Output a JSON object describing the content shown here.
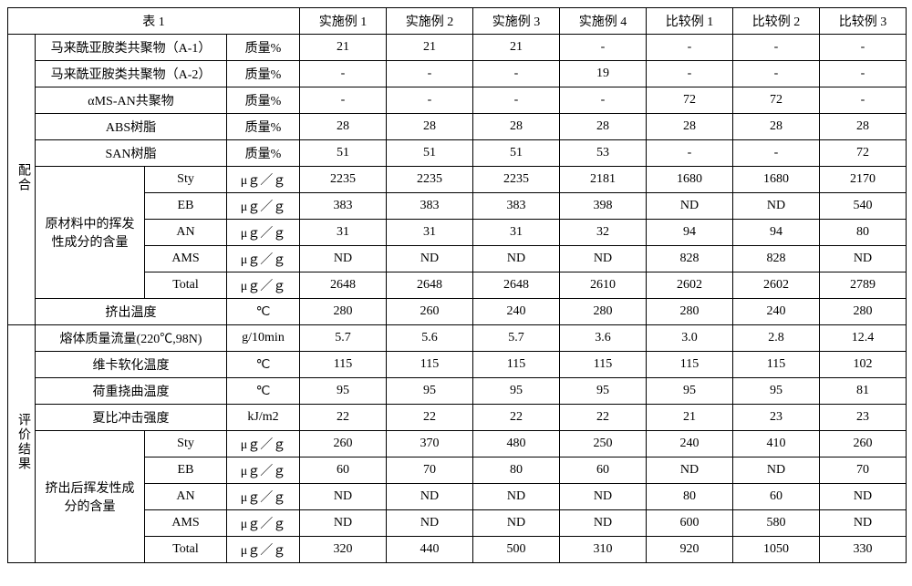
{
  "header": {
    "title": "表 1",
    "cols": [
      "实施例 1",
      "实施例 2",
      "实施例 3",
      "实施例 4",
      "比较例 1",
      "比较例 2",
      "比较例 3"
    ]
  },
  "side_labels": {
    "blend": "配合",
    "results": "评价结果"
  },
  "units": {
    "mass_pct": "质量%",
    "ug_g": "μｇ／ｇ",
    "degc": "℃",
    "g10min": "g/10min",
    "kjm2": "kJ/m2"
  },
  "blend": {
    "rows_simple": [
      {
        "label": "马来酰亚胺类共聚物（A-1）",
        "unit_key": "mass_pct",
        "vals": [
          "21",
          "21",
          "21",
          "-",
          "-",
          "-",
          "-"
        ]
      },
      {
        "label": "马来酰亚胺类共聚物（A-2）",
        "unit_key": "mass_pct",
        "vals": [
          "-",
          "-",
          "-",
          "19",
          "-",
          "-",
          "-"
        ]
      },
      {
        "label": "αMS-AN共聚物",
        "unit_key": "mass_pct",
        "vals": [
          "-",
          "-",
          "-",
          "-",
          "72",
          "72",
          "-"
        ]
      },
      {
        "label": "ABS树脂",
        "unit_key": "mass_pct",
        "vals": [
          "28",
          "28",
          "28",
          "28",
          "28",
          "28",
          "28"
        ]
      },
      {
        "label": "SAN树脂",
        "unit_key": "mass_pct",
        "vals": [
          "51",
          "51",
          "51",
          "53",
          "-",
          "-",
          "72"
        ]
      }
    ],
    "volatile": {
      "group_label": "原材料中的挥发性成分的含量",
      "rows": [
        {
          "sub": "Sty",
          "vals": [
            "2235",
            "2235",
            "2235",
            "2181",
            "1680",
            "1680",
            "2170"
          ]
        },
        {
          "sub": "EB",
          "vals": [
            "383",
            "383",
            "383",
            "398",
            "ND",
            "ND",
            "540"
          ]
        },
        {
          "sub": "AN",
          "vals": [
            "31",
            "31",
            "31",
            "32",
            "94",
            "94",
            "80"
          ]
        },
        {
          "sub": "AMS",
          "vals": [
            "ND",
            "ND",
            "ND",
            "ND",
            "828",
            "828",
            "ND"
          ]
        },
        {
          "sub": "Total",
          "vals": [
            "2648",
            "2648",
            "2648",
            "2610",
            "2602",
            "2602",
            "2789"
          ]
        }
      ]
    },
    "extrusion_temp": {
      "label": "挤出温度",
      "unit_key": "degc",
      "vals": [
        "280",
        "260",
        "240",
        "280",
        "280",
        "240",
        "280"
      ]
    }
  },
  "results": {
    "rows_simple": [
      {
        "label": "熔体质量流量(220℃,98N)",
        "unit_key": "g10min",
        "vals": [
          "5.7",
          "5.6",
          "5.7",
          "3.6",
          "3.0",
          "2.8",
          "12.4"
        ]
      },
      {
        "label": "维卡软化温度",
        "unit_key": "degc",
        "vals": [
          "115",
          "115",
          "115",
          "115",
          "115",
          "115",
          "102"
        ]
      },
      {
        "label": "荷重挠曲温度",
        "unit_key": "degc",
        "vals": [
          "95",
          "95",
          "95",
          "95",
          "95",
          "95",
          "81"
        ]
      },
      {
        "label": "夏比冲击强度",
        "unit_key": "kjm2",
        "vals": [
          "22",
          "22",
          "22",
          "22",
          "21",
          "23",
          "23"
        ]
      }
    ],
    "volatile": {
      "group_label": "挤出后挥发性成分的含量",
      "rows": [
        {
          "sub": "Sty",
          "vals": [
            "260",
            "370",
            "480",
            "250",
            "240",
            "410",
            "260"
          ]
        },
        {
          "sub": "EB",
          "vals": [
            "60",
            "70",
            "80",
            "60",
            "ND",
            "ND",
            "70"
          ]
        },
        {
          "sub": "AN",
          "vals": [
            "ND",
            "ND",
            "ND",
            "ND",
            "80",
            "60",
            "ND"
          ]
        },
        {
          "sub": "AMS",
          "vals": [
            "ND",
            "ND",
            "ND",
            "ND",
            "600",
            "580",
            "ND"
          ]
        },
        {
          "sub": "Total",
          "vals": [
            "320",
            "440",
            "500",
            "310",
            "920",
            "1050",
            "330"
          ]
        }
      ]
    }
  }
}
